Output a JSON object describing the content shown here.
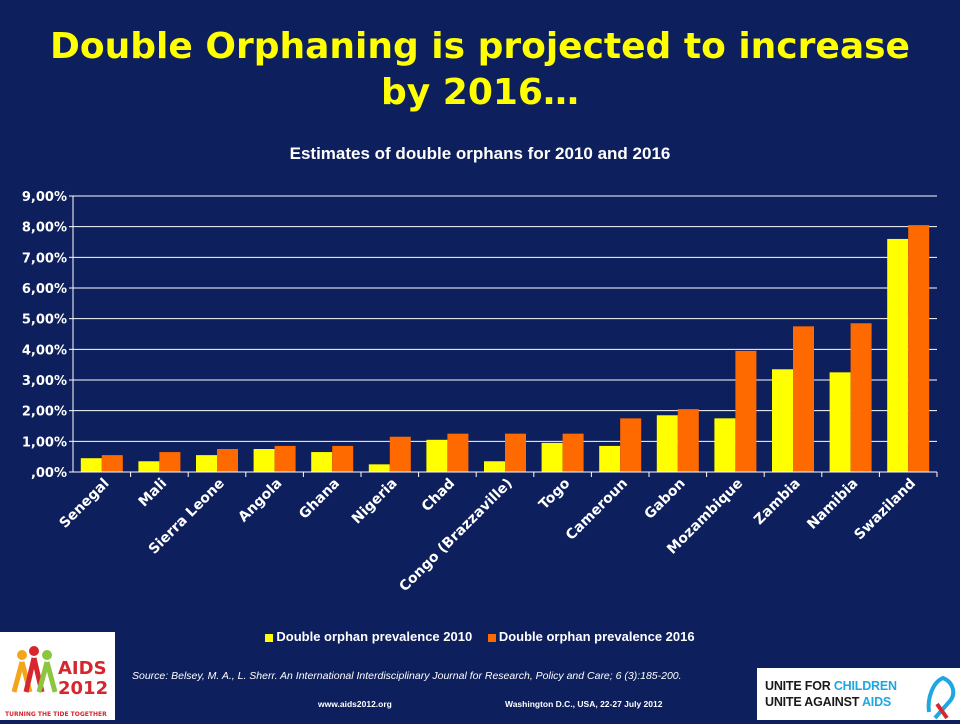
{
  "slide": {
    "title": "Double Orphaning is projected to increase by 2016…"
  },
  "chart_data": {
    "type": "bar",
    "title": "Estimates of double orphans for 2010 and 2016",
    "categories": [
      "Senegal",
      "Mali",
      "Sierra Leone",
      "Angola",
      "Ghana",
      "Nigeria",
      "Chad",
      "Congo (Brazzaville)",
      "Togo",
      "Cameroun",
      "Gabon",
      "Mozambique",
      "Zambia",
      "Namibia",
      "Swaziland"
    ],
    "series": [
      {
        "name": "Double orphan prevalence 2010",
        "color": "#ffff00",
        "values": [
          0.45,
          0.35,
          0.55,
          0.75,
          0.65,
          0.25,
          1.05,
          0.35,
          0.95,
          0.85,
          1.85,
          1.75,
          3.35,
          3.25,
          7.6
        ]
      },
      {
        "name": "Double orphan prevalence 2016",
        "color": "#ff6a00",
        "values": [
          0.55,
          0.65,
          0.75,
          0.85,
          0.85,
          1.15,
          1.25,
          1.25,
          1.25,
          1.75,
          2.05,
          3.95,
          4.75,
          4.85,
          8.05
        ]
      }
    ],
    "ylim": [
      0,
      9
    ],
    "yticks": [
      "9,00%",
      "8,00%",
      "7,00%",
      "6,00%",
      "5,00%",
      "4,00%",
      "3,00%",
      "2,00%",
      "1,00%",
      ",00%"
    ],
    "grid": true,
    "legend_position": "bottom"
  },
  "source": "Source: Belsey, M. A., L. Sherr. An International Interdisciplinary Journal for Research, Policy and Care; 6 (3):185-200.",
  "footer": {
    "url": "www.aids2012.org",
    "event": "Washington D.C., USA, 22-27 July 2012"
  },
  "logos": {
    "aids_main": "AIDS",
    "aids_year": "2012",
    "aids_tagline": "TURNING THE TIDE TOGETHER",
    "unite_line1_a": "UNITE FOR ",
    "unite_line1_b": "CHILDREN",
    "unite_line2_a": "UNITE AGAINST ",
    "unite_line2_b": "AIDS"
  }
}
